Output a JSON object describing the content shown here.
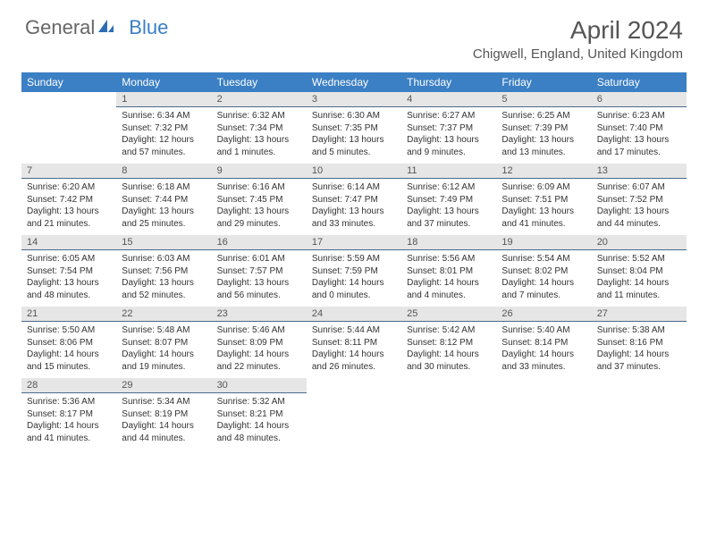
{
  "logo": {
    "text1": "General",
    "text2": "Blue"
  },
  "title": "April 2024",
  "location": "Chigwell, England, United Kingdom",
  "colors": {
    "header_bg": "#3b7fc4",
    "header_text": "#ffffff",
    "daynum_bg": "#e6e6e6",
    "daynum_border": "#4a6a8a",
    "body_text": "#333333"
  },
  "weekdays": [
    "Sunday",
    "Monday",
    "Tuesday",
    "Wednesday",
    "Thursday",
    "Friday",
    "Saturday"
  ],
  "weeks": [
    [
      null,
      {
        "n": "1",
        "sr": "6:34 AM",
        "ss": "7:32 PM",
        "dl": "12 hours and 57 minutes."
      },
      {
        "n": "2",
        "sr": "6:32 AM",
        "ss": "7:34 PM",
        "dl": "13 hours and 1 minutes."
      },
      {
        "n": "3",
        "sr": "6:30 AM",
        "ss": "7:35 PM",
        "dl": "13 hours and 5 minutes."
      },
      {
        "n": "4",
        "sr": "6:27 AM",
        "ss": "7:37 PM",
        "dl": "13 hours and 9 minutes."
      },
      {
        "n": "5",
        "sr": "6:25 AM",
        "ss": "7:39 PM",
        "dl": "13 hours and 13 minutes."
      },
      {
        "n": "6",
        "sr": "6:23 AM",
        "ss": "7:40 PM",
        "dl": "13 hours and 17 minutes."
      }
    ],
    [
      {
        "n": "7",
        "sr": "6:20 AM",
        "ss": "7:42 PM",
        "dl": "13 hours and 21 minutes."
      },
      {
        "n": "8",
        "sr": "6:18 AM",
        "ss": "7:44 PM",
        "dl": "13 hours and 25 minutes."
      },
      {
        "n": "9",
        "sr": "6:16 AM",
        "ss": "7:45 PM",
        "dl": "13 hours and 29 minutes."
      },
      {
        "n": "10",
        "sr": "6:14 AM",
        "ss": "7:47 PM",
        "dl": "13 hours and 33 minutes."
      },
      {
        "n": "11",
        "sr": "6:12 AM",
        "ss": "7:49 PM",
        "dl": "13 hours and 37 minutes."
      },
      {
        "n": "12",
        "sr": "6:09 AM",
        "ss": "7:51 PM",
        "dl": "13 hours and 41 minutes."
      },
      {
        "n": "13",
        "sr": "6:07 AM",
        "ss": "7:52 PM",
        "dl": "13 hours and 44 minutes."
      }
    ],
    [
      {
        "n": "14",
        "sr": "6:05 AM",
        "ss": "7:54 PM",
        "dl": "13 hours and 48 minutes."
      },
      {
        "n": "15",
        "sr": "6:03 AM",
        "ss": "7:56 PM",
        "dl": "13 hours and 52 minutes."
      },
      {
        "n": "16",
        "sr": "6:01 AM",
        "ss": "7:57 PM",
        "dl": "13 hours and 56 minutes."
      },
      {
        "n": "17",
        "sr": "5:59 AM",
        "ss": "7:59 PM",
        "dl": "14 hours and 0 minutes."
      },
      {
        "n": "18",
        "sr": "5:56 AM",
        "ss": "8:01 PM",
        "dl": "14 hours and 4 minutes."
      },
      {
        "n": "19",
        "sr": "5:54 AM",
        "ss": "8:02 PM",
        "dl": "14 hours and 7 minutes."
      },
      {
        "n": "20",
        "sr": "5:52 AM",
        "ss": "8:04 PM",
        "dl": "14 hours and 11 minutes."
      }
    ],
    [
      {
        "n": "21",
        "sr": "5:50 AM",
        "ss": "8:06 PM",
        "dl": "14 hours and 15 minutes."
      },
      {
        "n": "22",
        "sr": "5:48 AM",
        "ss": "8:07 PM",
        "dl": "14 hours and 19 minutes."
      },
      {
        "n": "23",
        "sr": "5:46 AM",
        "ss": "8:09 PM",
        "dl": "14 hours and 22 minutes."
      },
      {
        "n": "24",
        "sr": "5:44 AM",
        "ss": "8:11 PM",
        "dl": "14 hours and 26 minutes."
      },
      {
        "n": "25",
        "sr": "5:42 AM",
        "ss": "8:12 PM",
        "dl": "14 hours and 30 minutes."
      },
      {
        "n": "26",
        "sr": "5:40 AM",
        "ss": "8:14 PM",
        "dl": "14 hours and 33 minutes."
      },
      {
        "n": "27",
        "sr": "5:38 AM",
        "ss": "8:16 PM",
        "dl": "14 hours and 37 minutes."
      }
    ],
    [
      {
        "n": "28",
        "sr": "5:36 AM",
        "ss": "8:17 PM",
        "dl": "14 hours and 41 minutes."
      },
      {
        "n": "29",
        "sr": "5:34 AM",
        "ss": "8:19 PM",
        "dl": "14 hours and 44 minutes."
      },
      {
        "n": "30",
        "sr": "5:32 AM",
        "ss": "8:21 PM",
        "dl": "14 hours and 48 minutes."
      },
      null,
      null,
      null,
      null
    ]
  ],
  "labels": {
    "sunrise": "Sunrise:",
    "sunset": "Sunset:",
    "daylight": "Daylight:"
  }
}
